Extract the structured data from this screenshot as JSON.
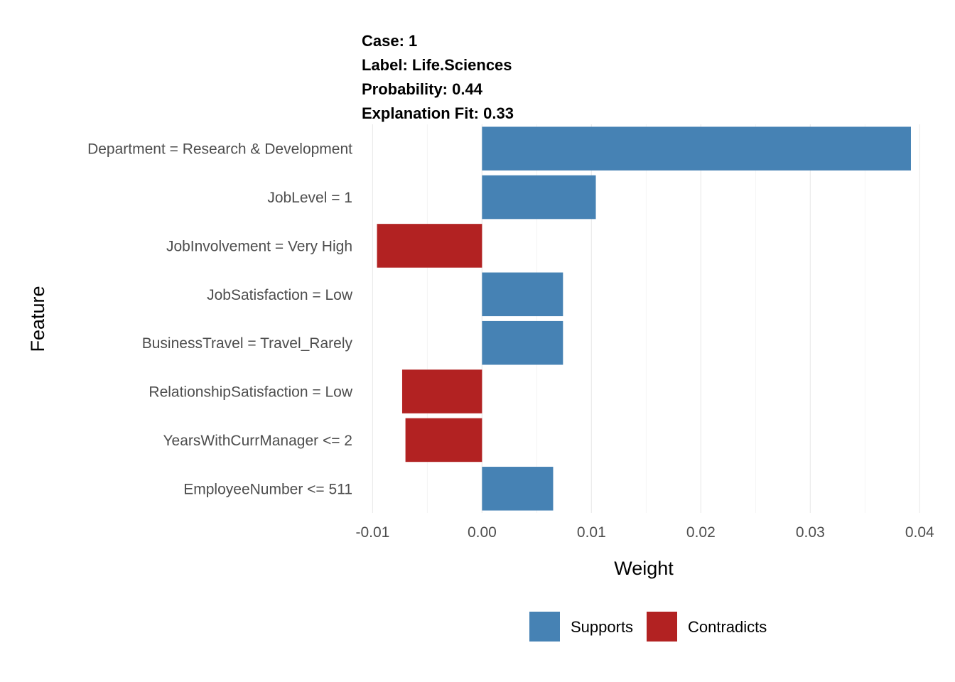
{
  "chart_data": {
    "type": "bar",
    "orientation": "horizontal",
    "title_lines": [
      "Case: 1",
      "Label: Life.Sciences",
      "Probability: 0.44",
      "Explanation Fit: 0.33"
    ],
    "xlabel": "Weight",
    "ylabel": "Feature",
    "xlim": [
      -0.011,
      0.0405
    ],
    "x_ticks": [
      -0.01,
      0.0,
      0.01,
      0.02,
      0.03,
      0.04
    ],
    "x_tick_labels": [
      "-0.01",
      "0.00",
      "0.01",
      "0.02",
      "0.03",
      "0.04"
    ],
    "grid": true,
    "categories": [
      "Department = Research & Development",
      "JobLevel = 1",
      "JobInvolvement = Very High",
      "JobSatisfaction = Low",
      "BusinessTravel = Travel_Rarely",
      "RelationshipSatisfaction = Low",
      "YearsWithCurrManager <= 2",
      "EmployeeNumber <= 511"
    ],
    "values": [
      0.0392,
      0.0104,
      -0.0096,
      0.0074,
      0.0074,
      -0.0073,
      -0.007,
      0.0065
    ],
    "groups": [
      "Supports",
      "Supports",
      "Contradicts",
      "Supports",
      "Supports",
      "Contradicts",
      "Contradicts",
      "Supports"
    ],
    "legend": {
      "placement": "bottom",
      "entries": [
        {
          "name": "Supports",
          "color": "#4682B4"
        },
        {
          "name": "Contradicts",
          "color": "#B22222"
        }
      ]
    }
  }
}
